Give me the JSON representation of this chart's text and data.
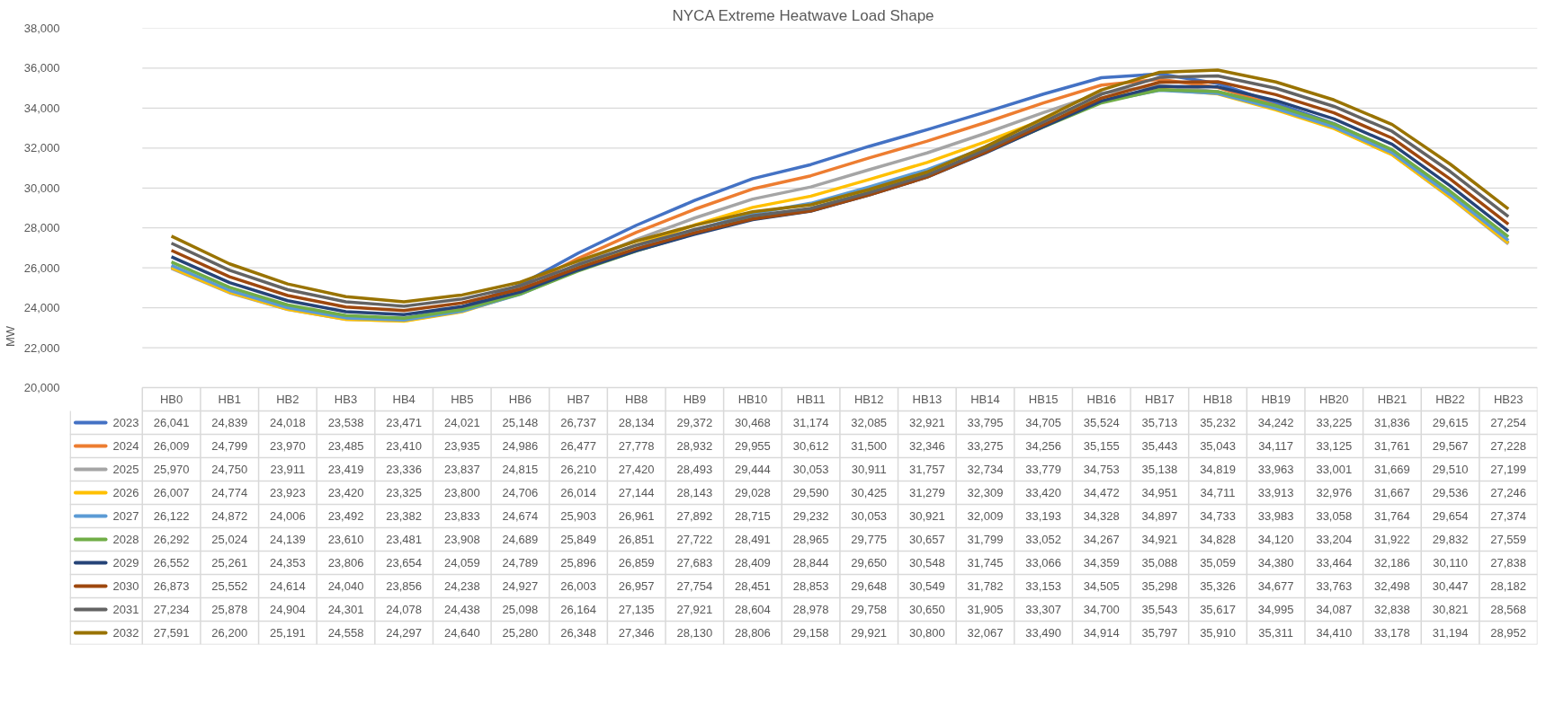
{
  "chart_data": {
    "type": "line",
    "title": "NYCA Extreme Heatwave Load Shape",
    "ylabel": "MW",
    "categories": [
      "HB0",
      "HB1",
      "HB2",
      "HB3",
      "HB4",
      "HB5",
      "HB6",
      "HB7",
      "HB8",
      "HB9",
      "HB10",
      "HB11",
      "HB12",
      "HB13",
      "HB14",
      "HB15",
      "HB16",
      "HB17",
      "HB18",
      "HB19",
      "HB20",
      "HB21",
      "HB22",
      "HB23"
    ],
    "ylim": [
      20000,
      38000
    ],
    "yticks": [
      {
        "value": 20000,
        "label": "20,000"
      },
      {
        "value": 22000,
        "label": "22,000"
      },
      {
        "value": 24000,
        "label": "24,000"
      },
      {
        "value": 26000,
        "label": "26,000"
      },
      {
        "value": 28000,
        "label": "28,000"
      },
      {
        "value": 30000,
        "label": "30,000"
      },
      {
        "value": 32000,
        "label": "32,000"
      },
      {
        "value": 34000,
        "label": "34,000"
      },
      {
        "value": 36000,
        "label": "36,000"
      },
      {
        "value": 38000,
        "label": "38,000"
      }
    ],
    "grid": "y",
    "legend": "bottom",
    "series": [
      {
        "name": "2023",
        "color": "#4472c4",
        "values": [
          26041,
          24839,
          24018,
          23538,
          23471,
          24021,
          25148,
          26737,
          28134,
          29372,
          30468,
          31174,
          32085,
          32921,
          33795,
          34705,
          35524,
          35713,
          35232,
          34242,
          33225,
          31836,
          29615,
          27254
        ],
        "value_labels": [
          "26,041",
          "24,839",
          "24,018",
          "23,538",
          "23,471",
          "24,021",
          "25,148",
          "26,737",
          "28,134",
          "29,372",
          "30,468",
          "31,174",
          "32,085",
          "32,921",
          "33,795",
          "34,705",
          "35,524",
          "35,713",
          "35,232",
          "34,242",
          "33,225",
          "31,836",
          "29,615",
          "27,254"
        ]
      },
      {
        "name": "2024",
        "color": "#ed7d31",
        "values": [
          26009,
          24799,
          23970,
          23485,
          23410,
          23935,
          24986,
          26477,
          27778,
          28932,
          29955,
          30612,
          31500,
          32346,
          33275,
          34256,
          35155,
          35443,
          35043,
          34117,
          33125,
          31761,
          29567,
          27228
        ],
        "value_labels": [
          "26,009",
          "24,799",
          "23,970",
          "23,485",
          "23,410",
          "23,935",
          "24,986",
          "26,477",
          "27,778",
          "28,932",
          "29,955",
          "30,612",
          "31,500",
          "32,346",
          "33,275",
          "34,256",
          "35,155",
          "35,443",
          "35,043",
          "34,117",
          "33,125",
          "31,761",
          "29,567",
          "27,228"
        ]
      },
      {
        "name": "2025",
        "color": "#a5a5a5",
        "values": [
          25970,
          24750,
          23911,
          23419,
          23336,
          23837,
          24815,
          26210,
          27420,
          28493,
          29444,
          30053,
          30911,
          31757,
          32734,
          33779,
          34753,
          35138,
          34819,
          33963,
          33001,
          31669,
          29510,
          27199
        ],
        "value_labels": [
          "25,970",
          "24,750",
          "23,911",
          "23,419",
          "23,336",
          "23,837",
          "24,815",
          "26,210",
          "27,420",
          "28,493",
          "29,444",
          "30,053",
          "30,911",
          "31,757",
          "32,734",
          "33,779",
          "34,753",
          "35,138",
          "34,819",
          "33,963",
          "33,001",
          "31,669",
          "29,510",
          "27,199"
        ]
      },
      {
        "name": "2026",
        "color": "#ffc000",
        "values": [
          26007,
          24774,
          23923,
          23420,
          23325,
          23800,
          24706,
          26014,
          27144,
          28143,
          29028,
          29590,
          30425,
          31279,
          32309,
          33420,
          34472,
          34951,
          34711,
          33913,
          32976,
          31667,
          29536,
          27246
        ],
        "value_labels": [
          "26,007",
          "24,774",
          "23,923",
          "23,420",
          "23,325",
          "23,800",
          "24,706",
          "26,014",
          "27,144",
          "28,143",
          "29,028",
          "29,590",
          "30,425",
          "31,279",
          "32,309",
          "33,420",
          "34,472",
          "34,951",
          "34,711",
          "33,913",
          "32,976",
          "31,667",
          "29,536",
          "27,246"
        ]
      },
      {
        "name": "2027",
        "color": "#5b9bd5",
        "values": [
          26122,
          24872,
          24006,
          23492,
          23382,
          23833,
          24674,
          25903,
          26961,
          27892,
          28715,
          29232,
          30053,
          30921,
          32009,
          33193,
          34328,
          34897,
          34733,
          33983,
          33058,
          31764,
          29654,
          27374
        ],
        "value_labels": [
          "26,122",
          "24,872",
          "24,006",
          "23,492",
          "23,382",
          "23,833",
          "24,674",
          "25,903",
          "26,961",
          "27,892",
          "28,715",
          "29,232",
          "30,053",
          "30,921",
          "32,009",
          "33,193",
          "34,328",
          "34,897",
          "34,733",
          "33,983",
          "33,058",
          "31,764",
          "29,654",
          "27,374"
        ]
      },
      {
        "name": "2028",
        "color": "#70ad47",
        "values": [
          26292,
          25024,
          24139,
          23610,
          23481,
          23908,
          24689,
          25849,
          26851,
          27722,
          28491,
          28965,
          29775,
          30657,
          31799,
          33052,
          34267,
          34921,
          34828,
          34120,
          33204,
          31922,
          29832,
          27559
        ],
        "value_labels": [
          "26,292",
          "25,024",
          "24,139",
          "23,610",
          "23,481",
          "23,908",
          "24,689",
          "25,849",
          "26,851",
          "27,722",
          "28,491",
          "28,965",
          "29,775",
          "30,657",
          "31,799",
          "33,052",
          "34,267",
          "34,921",
          "34,828",
          "34,120",
          "33,204",
          "31,922",
          "29,832",
          "27,559"
        ]
      },
      {
        "name": "2029",
        "color": "#264478",
        "values": [
          26552,
          25261,
          24353,
          23806,
          23654,
          24059,
          24789,
          25896,
          26859,
          27683,
          28409,
          28844,
          29650,
          30548,
          31745,
          33066,
          34359,
          35088,
          35059,
          34380,
          33464,
          32186,
          30110,
          27838
        ],
        "value_labels": [
          "26,552",
          "25,261",
          "24,353",
          "23,806",
          "23,654",
          "24,059",
          "24,789",
          "25,896",
          "26,859",
          "27,683",
          "28,409",
          "28,844",
          "29,650",
          "30,548",
          "31,745",
          "33,066",
          "34,359",
          "35,088",
          "35,059",
          "34,380",
          "33,464",
          "32,186",
          "30,110",
          "27,838"
        ]
      },
      {
        "name": "2030",
        "color": "#9e480e",
        "values": [
          26873,
          25552,
          24614,
          24040,
          23856,
          24238,
          24927,
          26003,
          26957,
          27754,
          28451,
          28853,
          29648,
          30549,
          31782,
          33153,
          34505,
          35298,
          35326,
          34677,
          33763,
          32498,
          30447,
          28182
        ],
        "value_labels": [
          "26,873",
          "25,552",
          "24,614",
          "24,040",
          "23,856",
          "24,238",
          "24,927",
          "26,003",
          "26,957",
          "27,754",
          "28,451",
          "28,853",
          "29,648",
          "30,549",
          "31,782",
          "33,153",
          "34,505",
          "35,298",
          "35,326",
          "34,677",
          "33,763",
          "32,498",
          "30,447",
          "28,182"
        ]
      },
      {
        "name": "2031",
        "color": "#636363",
        "values": [
          27234,
          25878,
          24904,
          24301,
          24078,
          24438,
          25098,
          26164,
          27135,
          27921,
          28604,
          28978,
          29758,
          30650,
          31905,
          33307,
          34700,
          35543,
          35617,
          34995,
          34087,
          32838,
          30821,
          28568
        ],
        "value_labels": [
          "27,234",
          "25,878",
          "24,904",
          "24,301",
          "24,078",
          "24,438",
          "25,098",
          "26,164",
          "27,135",
          "27,921",
          "28,604",
          "28,978",
          "29,758",
          "30,650",
          "31,905",
          "33,307",
          "34,700",
          "35,543",
          "35,617",
          "34,995",
          "34,087",
          "32,838",
          "30,821",
          "28,568"
        ]
      },
      {
        "name": "2032",
        "color": "#997300",
        "values": [
          27591,
          26200,
          25191,
          24558,
          24297,
          24640,
          25280,
          26348,
          27346,
          28130,
          28806,
          29158,
          29921,
          30800,
          32067,
          33490,
          34914,
          35797,
          35910,
          35311,
          34410,
          33178,
          31194,
          28952
        ],
        "value_labels": [
          "27,591",
          "26,200",
          "25,191",
          "24,558",
          "24,297",
          "24,640",
          "25,280",
          "26,348",
          "27,346",
          "28,130",
          "28,806",
          "29,158",
          "29,921",
          "30,800",
          "32,067",
          "33,490",
          "34,914",
          "35,797",
          "35,910",
          "35,311",
          "34,410",
          "33,178",
          "31,194",
          "28,952"
        ]
      }
    ]
  }
}
